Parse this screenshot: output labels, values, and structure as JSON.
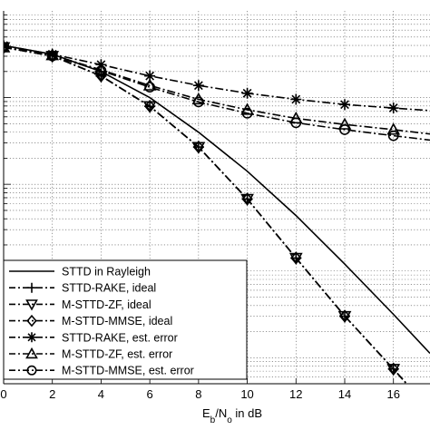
{
  "chart_data": {
    "type": "line",
    "xlabel": {
      "main": "E",
      "sub1": "b",
      "mid": "/N",
      "sub2": "o",
      "tail": " in dB"
    },
    "xlim": [
      0,
      17.5
    ],
    "ylim": [
      -4.3,
      0
    ],
    "yscale": "log",
    "grid": true,
    "x_ticks": [
      0,
      2,
      4,
      6,
      8,
      10,
      12,
      14,
      16
    ],
    "x_tick_labels": [
      "0",
      "2",
      "4",
      "6",
      "8",
      "10",
      "12",
      "14",
      "16"
    ],
    "legend_position": "bottom-left",
    "series": [
      {
        "name": "STTD in Rayleigh",
        "style": "solid",
        "marker": "none",
        "x": [
          0,
          2,
          4,
          6,
          8,
          10,
          12,
          14,
          16,
          17.5
        ],
        "log10_y": [
          -0.4,
          -0.5,
          -0.7,
          -1.0,
          -1.4,
          -1.85,
          -2.36,
          -2.92,
          -3.5,
          -3.95
        ]
      },
      {
        "name": "STTD-RAKE, ideal",
        "style": "dash-dot",
        "marker": "plus",
        "x": [
          0,
          2,
          4,
          6,
          8,
          10,
          12,
          14,
          16,
          17.5
        ],
        "log10_y": [
          -0.42,
          -0.52,
          -0.75,
          -1.1,
          -1.57,
          -2.17,
          -2.85,
          -3.52,
          -4.13,
          -4.6
        ]
      },
      {
        "name": "M-STTD-ZF, ideal",
        "style": "dash-dot",
        "marker": "triangle-down",
        "x": [
          0,
          2,
          4,
          6,
          8,
          10,
          12,
          14,
          16,
          17.5
        ],
        "log10_y": [
          -0.42,
          -0.52,
          -0.75,
          -1.1,
          -1.57,
          -2.17,
          -2.85,
          -3.52,
          -4.13,
          -4.6
        ]
      },
      {
        "name": "M-STTD-MMSE, ideal",
        "style": "dash-dot",
        "marker": "diamond",
        "x": [
          0,
          2,
          4,
          6,
          8,
          10,
          12,
          14,
          16,
          17.5
        ],
        "log10_y": [
          -0.42,
          -0.52,
          -0.75,
          -1.1,
          -1.57,
          -2.17,
          -2.85,
          -3.52,
          -4.13,
          -4.6
        ]
      },
      {
        "name": "STTD-RAKE, est. error",
        "style": "dash-dot",
        "marker": "star",
        "x": [
          0,
          2,
          4,
          6,
          8,
          10,
          12,
          14,
          16,
          17.5
        ],
        "log10_y": [
          -0.4,
          -0.5,
          -0.62,
          -0.75,
          -0.86,
          -0.95,
          -1.02,
          -1.08,
          -1.12,
          -1.15
        ]
      },
      {
        "name": "M-STTD-ZF, est. error",
        "style": "dash-dot",
        "marker": "triangle-up",
        "x": [
          0,
          2,
          4,
          6,
          8,
          10,
          12,
          14,
          16,
          17.5
        ],
        "log10_y": [
          -0.42,
          -0.51,
          -0.68,
          -0.86,
          -1.02,
          -1.14,
          -1.24,
          -1.31,
          -1.37,
          -1.42
        ]
      },
      {
        "name": "M-STTD-MMSE, est. error",
        "style": "dash-dot",
        "marker": "circle",
        "x": [
          0,
          2,
          4,
          6,
          8,
          10,
          12,
          14,
          16,
          17.5
        ],
        "log10_y": [
          -0.42,
          -0.52,
          -0.69,
          -0.88,
          -1.05,
          -1.18,
          -1.29,
          -1.37,
          -1.44,
          -1.49
        ]
      }
    ]
  }
}
